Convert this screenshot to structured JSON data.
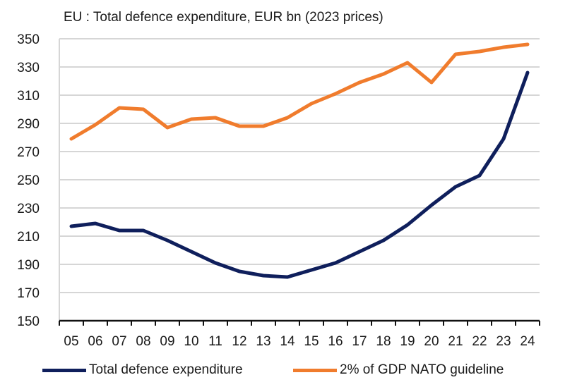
{
  "chart_data": {
    "type": "line",
    "title": "EU : Total defence expenditure, EUR bn (2023 prices)",
    "categories": [
      "05",
      "06",
      "07",
      "08",
      "09",
      "10",
      "11",
      "12",
      "13",
      "14",
      "15",
      "16",
      "17",
      "18",
      "19",
      "20",
      "21",
      "22",
      "23",
      "24"
    ],
    "series": [
      {
        "name": "Total defence expenditure",
        "color": "#0f1f5c",
        "values": [
          217,
          219,
          214,
          214,
          207,
          199,
          191,
          185,
          182,
          181,
          186,
          191,
          199,
          207,
          218,
          232,
          245,
          253,
          279,
          326
        ]
      },
      {
        "name": "2% of GDP NATO guideline",
        "color": "#f07c2d",
        "values": [
          279,
          289,
          301,
          300,
          287,
          293,
          294,
          288,
          288,
          294,
          304,
          311,
          319,
          325,
          333,
          319,
          339,
          341,
          344,
          346
        ]
      }
    ],
    "ylim": [
      150,
      350
    ],
    "yticks": [
      150,
      170,
      190,
      210,
      230,
      250,
      270,
      290,
      310,
      330,
      350
    ],
    "grid": true,
    "legend": "bottom"
  }
}
